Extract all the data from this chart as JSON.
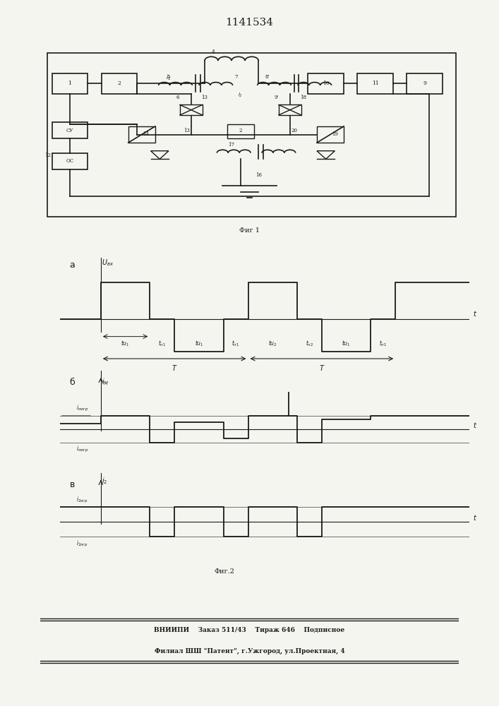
{
  "title": "1141534",
  "fig1_caption": "Фиг 1",
  "fig2_caption": "Фиг.2",
  "footer_line1": "ВНИИПИ    Заказ 511/43    Тираж 646    Подписное",
  "footer_line2": "Филиал ШШ \"Патент\", г.Ужгород, ул.Проектная, 4",
  "bg_color": "#f5f5f0",
  "line_color": "#1a1a1a",
  "label_a": "а",
  "label_b": "б",
  "label_v": "в",
  "ylabel_a": "$U_{вх}$",
  "ylabel_b": "$i_M$",
  "ylabel_v": "$i_2$",
  "xlabel": "$t$",
  "label_imogr_plus": "$i_{могр}$",
  "label_imogr_minus": "$i_{могр}$",
  "label_i20gr_plus": "$i_{2огр}$",
  "label_i20gr_minus": "$i_{2огр}$",
  "label_tu1": "$tu_1$",
  "label_tn1": "$t_{п1}$",
  "label_tu2": "$tu_2$",
  "label_tn2": "$t_{п2}$",
  "label_T": "$T$",
  "circuit_color": "#1a1a1a"
}
